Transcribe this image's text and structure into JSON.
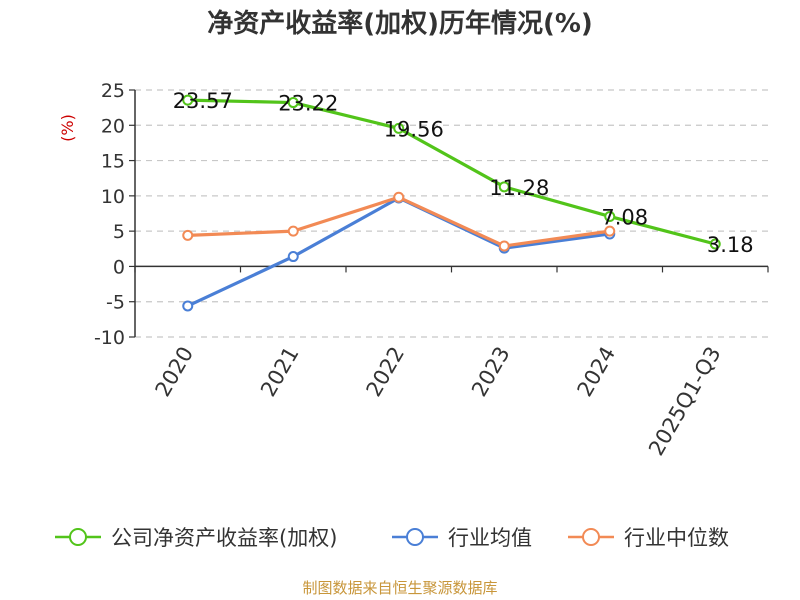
{
  "chart_data": {
    "type": "line",
    "title": "净资产收益率(加权)历年情况(%)",
    "ylabel": "(%)",
    "categories": [
      "2020",
      "2021",
      "2022",
      "2023",
      "2024",
      "2025Q1-Q3"
    ],
    "ylim": [
      -10,
      25
    ],
    "yticks": [
      25,
      20,
      15,
      10,
      5,
      0,
      -5,
      -10
    ],
    "grid": true,
    "legend_position": "bottom",
    "series": [
      {
        "name": "公司净资产收益率(加权)",
        "color": "#52c41a",
        "values": [
          23.57,
          23.22,
          19.56,
          11.28,
          7.08,
          3.18
        ],
        "labels": [
          "23.57",
          "23.22",
          "19.56",
          "11.28",
          "7.08",
          "3.18"
        ]
      },
      {
        "name": "行业均值",
        "color": "#4a7fd6",
        "values": [
          -5.6,
          1.4,
          9.7,
          2.6,
          4.6,
          null
        ]
      },
      {
        "name": "行业中位数",
        "color": "#f28a55",
        "values": [
          4.4,
          5.0,
          9.8,
          2.9,
          5.0,
          null
        ]
      }
    ],
    "source": "制图数据来自恒生聚源数据库"
  }
}
